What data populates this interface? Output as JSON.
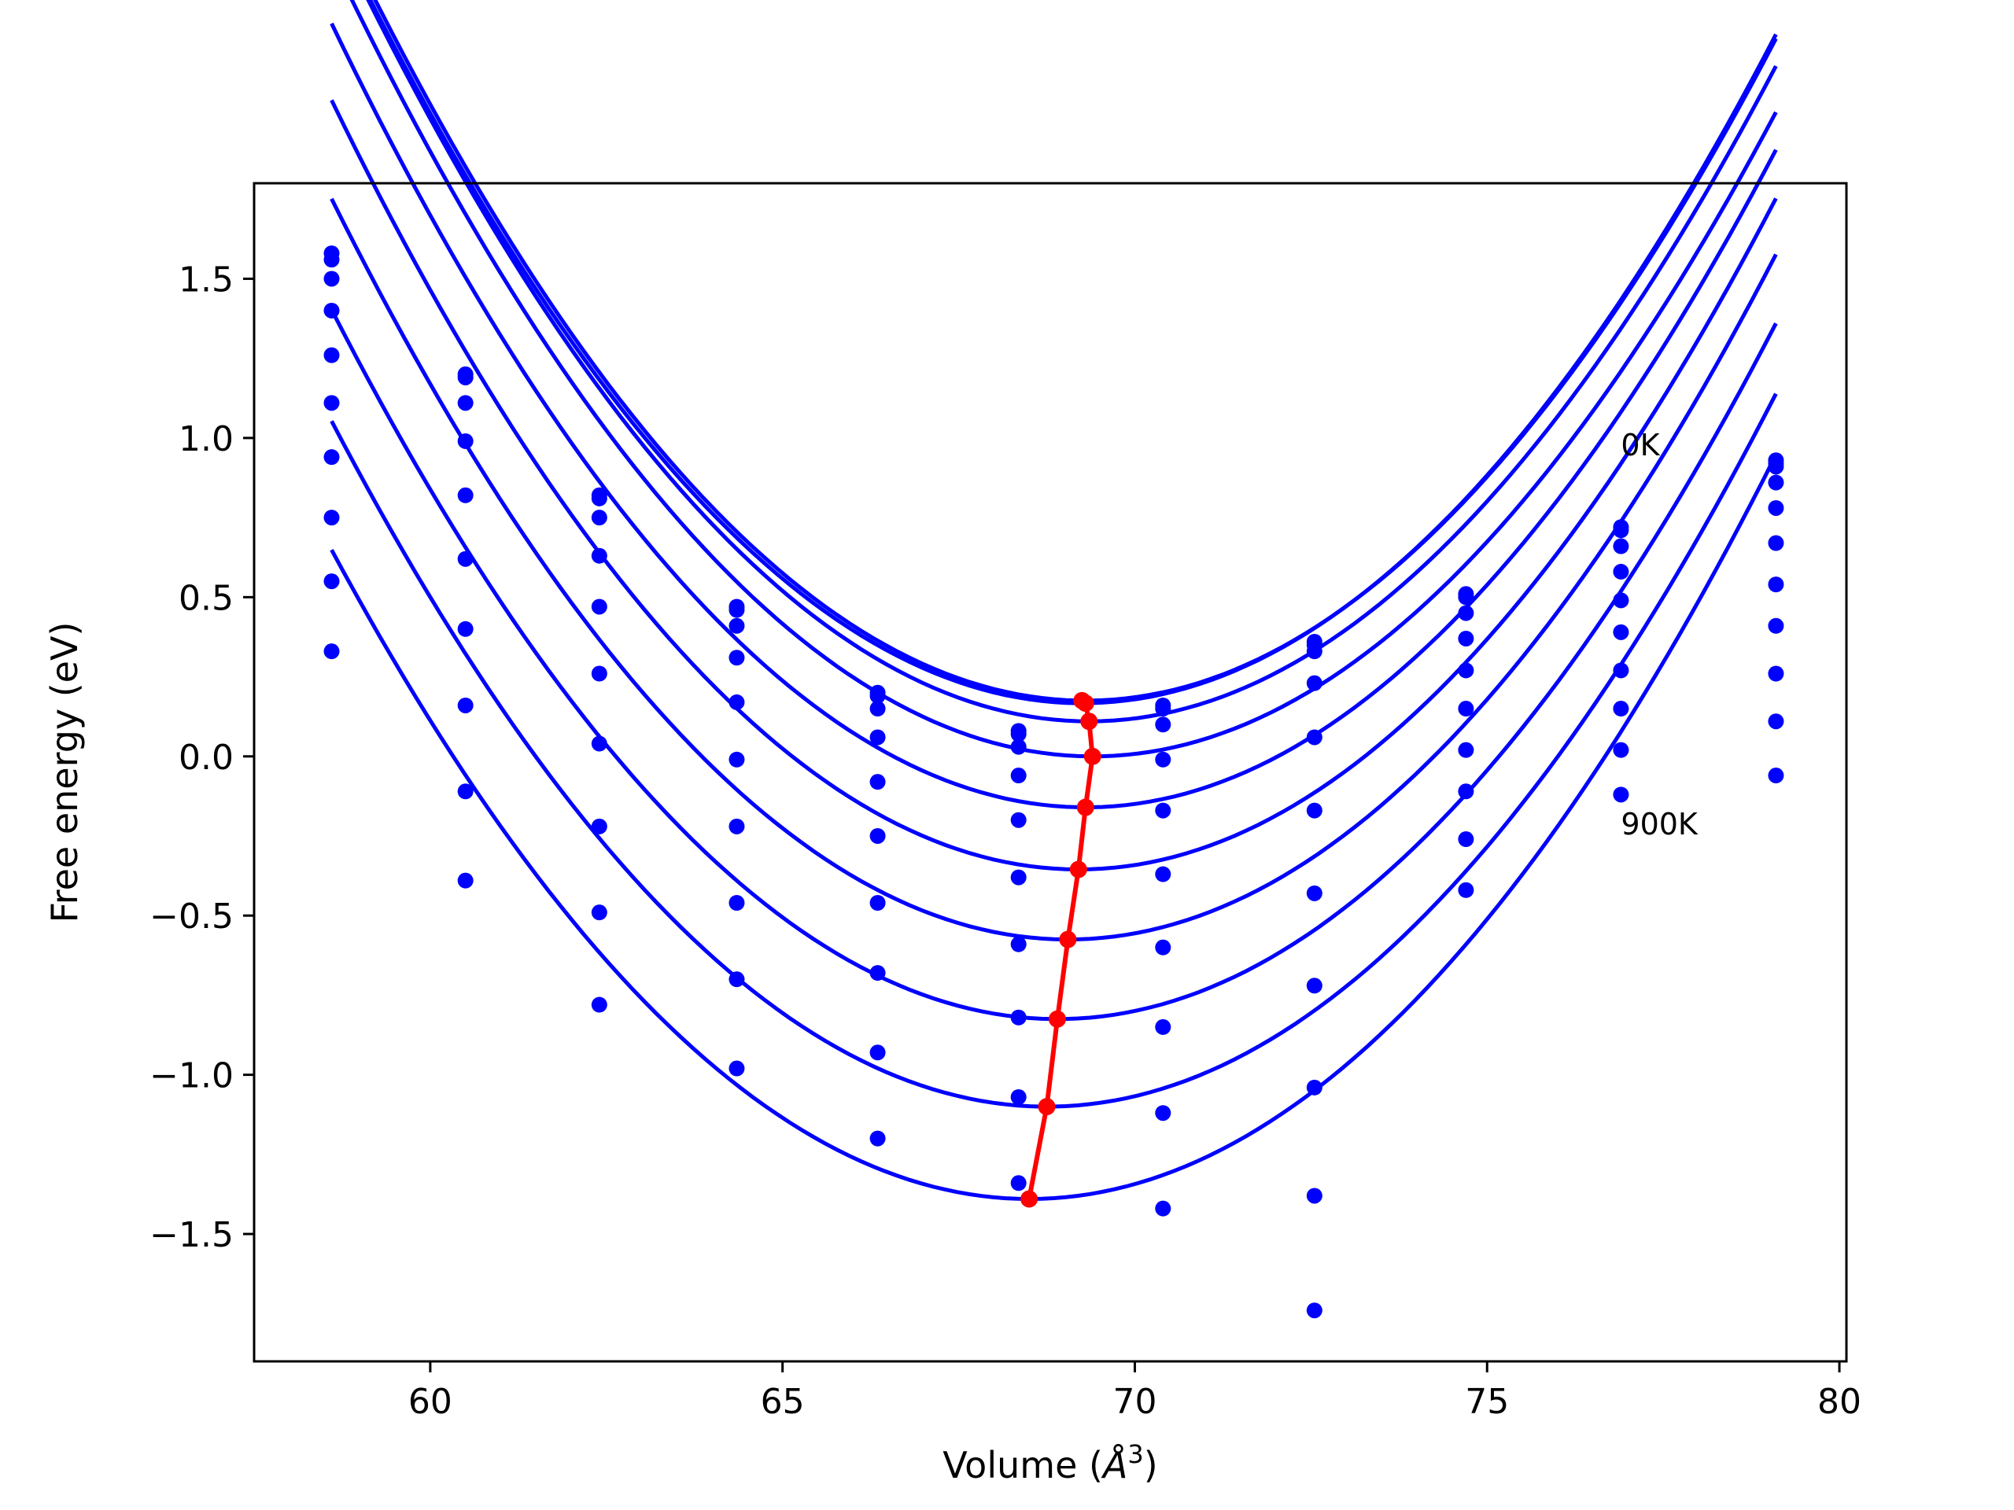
{
  "chart_data": {
    "type": "line",
    "title": "",
    "xlabel": "Volume (",
    "xlabel_symbol": "Å",
    "xlabel_exponent": "3",
    "xlabel_suffix": ")",
    "ylabel": "Free energy (eV)",
    "xlim": [
      57.5,
      80.1
    ],
    "ylim": [
      -1.9,
      1.8
    ],
    "xticks": [
      60,
      65,
      70,
      75,
      80
    ],
    "yticks": [
      -1.5,
      -1.0,
      -0.5,
      0.0,
      0.5,
      1.0,
      1.5
    ],
    "xtick_labels": [
      "60",
      "65",
      "70",
      "75",
      "80"
    ],
    "ytick_labels": [
      "−1.5",
      "−1.0",
      "−0.5",
      "0.0",
      "0.5",
      "1.0",
      "1.5"
    ],
    "grid": false,
    "colors": {
      "curves": "#0000ff",
      "minimum_path": "#ff0000"
    },
    "annotations": [
      {
        "text": "0K",
        "x": 76.9,
        "y": 0.98
      },
      {
        "text": "900K",
        "x": 76.9,
        "y": -0.21
      }
    ],
    "volumes": [
      58.6,
      60.5,
      62.4,
      64.35,
      66.35,
      68.35,
      70.4,
      72.55,
      74.7,
      76.9,
      79.1
    ],
    "series": [
      {
        "points": [
          1.58,
          1.2,
          0.82,
          0.47,
          0.2,
          0.08,
          0.16,
          0.36,
          0.51,
          0.72,
          0.93
        ],
        "fit": {
          "a": 0.02165,
          "v0": 69.3,
          "e0": 0.175
        }
      },
      {
        "points": [
          1.56,
          1.19,
          0.81,
          0.46,
          0.19,
          0.07,
          0.15,
          0.35,
          0.5,
          0.71,
          0.92
        ],
        "fit": {
          "a": 0.02165,
          "v0": 69.25,
          "e0": 0.167
        }
      },
      {
        "points": [
          1.5,
          1.11,
          0.75,
          0.41,
          0.15,
          0.03,
          0.1,
          0.33,
          0.45,
          0.66,
          0.91
        ],
        "fit": {
          "a": 0.02165,
          "v0": 69.35,
          "e0": 0.11
        }
      },
      {
        "points": [
          1.4,
          0.99,
          0.63,
          0.31,
          0.06,
          -0.06,
          -0.01,
          0.23,
          0.37,
          0.58,
          0.86
        ],
        "fit": {
          "a": 0.0215,
          "v0": 69.4,
          "e0": 0.0
        }
      },
      {
        "points": [
          1.26,
          0.82,
          0.47,
          0.17,
          -0.08,
          -0.2,
          -0.17,
          0.06,
          0.27,
          0.49,
          0.78
        ],
        "fit": {
          "a": 0.0215,
          "v0": 69.3,
          "e0": -0.16
        }
      },
      {
        "points": [
          1.11,
          0.62,
          0.26,
          -0.01,
          -0.25,
          -0.38,
          -0.37,
          -0.17,
          0.15,
          0.39,
          0.67
        ],
        "fit": {
          "a": 0.0215,
          "v0": 69.2,
          "e0": -0.355
        }
      },
      {
        "points": [
          0.94,
          0.4,
          0.04,
          -0.22,
          -0.46,
          -0.59,
          -0.6,
          -0.43,
          0.02,
          0.27,
          0.54
        ],
        "fit": {
          "a": 0.0213,
          "v0": 69.05,
          "e0": -0.575
        }
      },
      {
        "points": [
          0.75,
          0.16,
          -0.22,
          -0.46,
          -0.68,
          -0.82,
          -0.85,
          -0.72,
          -0.11,
          0.15,
          0.41
        ],
        "fit": {
          "a": 0.021,
          "v0": 68.9,
          "e0": -0.825
        }
      },
      {
        "points": [
          0.55,
          -0.11,
          -0.49,
          -0.7,
          -0.93,
          -1.07,
          -1.12,
          -1.04,
          -0.26,
          0.02,
          0.26
        ],
        "fit": {
          "a": 0.0209,
          "v0": 68.75,
          "e0": -1.1
        }
      },
      {
        "points": [
          0.33,
          -0.39,
          -0.78,
          -0.98,
          -1.2,
          -1.34,
          -1.42,
          -1.38,
          -0.42,
          -0.12,
          0.11
        ],
        "fit": {
          "a": 0.0208,
          "v0": 68.5,
          "e0": -1.39
        }
      },
      {
        "points": [
          null,
          null,
          null,
          null,
          null,
          null,
          null,
          -1.74,
          null,
          null,
          -0.06
        ],
        "fit": null
      }
    ],
    "minimum_path": {
      "x": [
        69.25,
        69.3,
        69.35,
        69.4,
        69.3,
        69.2,
        69.05,
        68.9,
        68.75,
        68.5
      ],
      "y": [
        0.175,
        0.167,
        0.11,
        0.0,
        -0.16,
        -0.355,
        -0.575,
        -0.825,
        -1.1,
        -1.39
      ]
    }
  }
}
